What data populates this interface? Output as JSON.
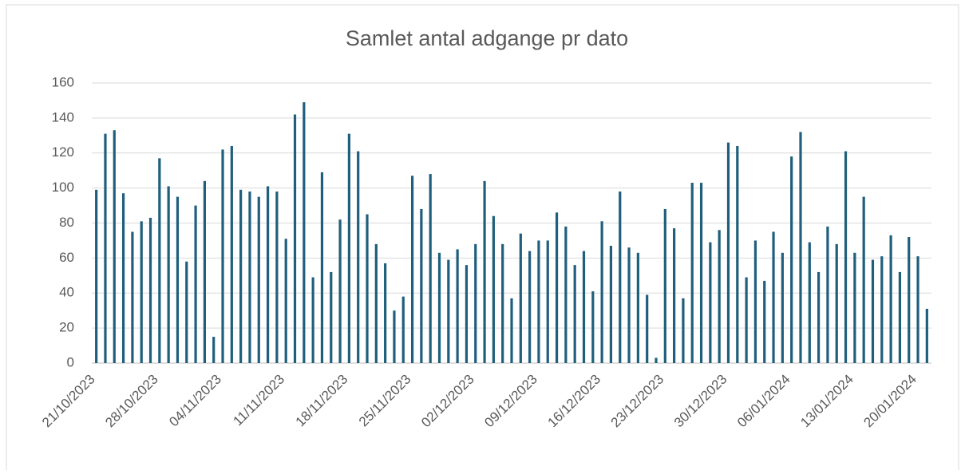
{
  "chart_data": {
    "type": "bar",
    "title": "Samlet antal adgange pr dato",
    "categories": [
      "21/10/2023",
      null,
      null,
      null,
      null,
      null,
      null,
      "28/10/2023",
      null,
      null,
      null,
      null,
      null,
      null,
      "04/11/2023",
      null,
      null,
      null,
      null,
      null,
      null,
      "11/11/2023",
      null,
      null,
      null,
      null,
      null,
      null,
      "18/11/2023",
      null,
      null,
      null,
      null,
      null,
      null,
      "25/11/2023",
      null,
      null,
      null,
      null,
      null,
      null,
      "02/12/2023",
      null,
      null,
      null,
      null,
      null,
      null,
      "09/12/2023",
      null,
      null,
      null,
      null,
      null,
      null,
      "16/12/2023",
      null,
      null,
      null,
      null,
      null,
      null,
      "23/12/2023",
      null,
      null,
      null,
      null,
      null,
      null,
      "30/12/2023",
      null,
      null,
      null,
      null,
      null,
      null,
      "06/01/2024",
      null,
      null,
      null,
      null,
      null,
      null,
      "13/01/2024",
      null,
      null,
      null,
      null,
      null,
      null,
      "20/01/2024",
      null
    ],
    "values": [
      99,
      131,
      133,
      97,
      75,
      81,
      83,
      117,
      101,
      95,
      58,
      90,
      104,
      15,
      122,
      124,
      99,
      98,
      95,
      101,
      98,
      71,
      142,
      149,
      49,
      109,
      52,
      82,
      131,
      121,
      85,
      68,
      57,
      30,
      38,
      107,
      88,
      108,
      63,
      59,
      65,
      56,
      68,
      104,
      84,
      68,
      37,
      74,
      64,
      70,
      70,
      86,
      78,
      56,
      64,
      41,
      81,
      67,
      98,
      66,
      63,
      39,
      3,
      88,
      77,
      37,
      103,
      103,
      69,
      76,
      126,
      124,
      49,
      70,
      47,
      75,
      63,
      118,
      132,
      69,
      52,
      78,
      68,
      121,
      63,
      95,
      59,
      61,
      73,
      52,
      72,
      61,
      31
    ],
    "color": "#1f5f7c",
    "ylim": [
      0,
      160
    ],
    "yticks": [
      0,
      20,
      40,
      60,
      80,
      100,
      120,
      140,
      160
    ],
    "grid": true
  }
}
